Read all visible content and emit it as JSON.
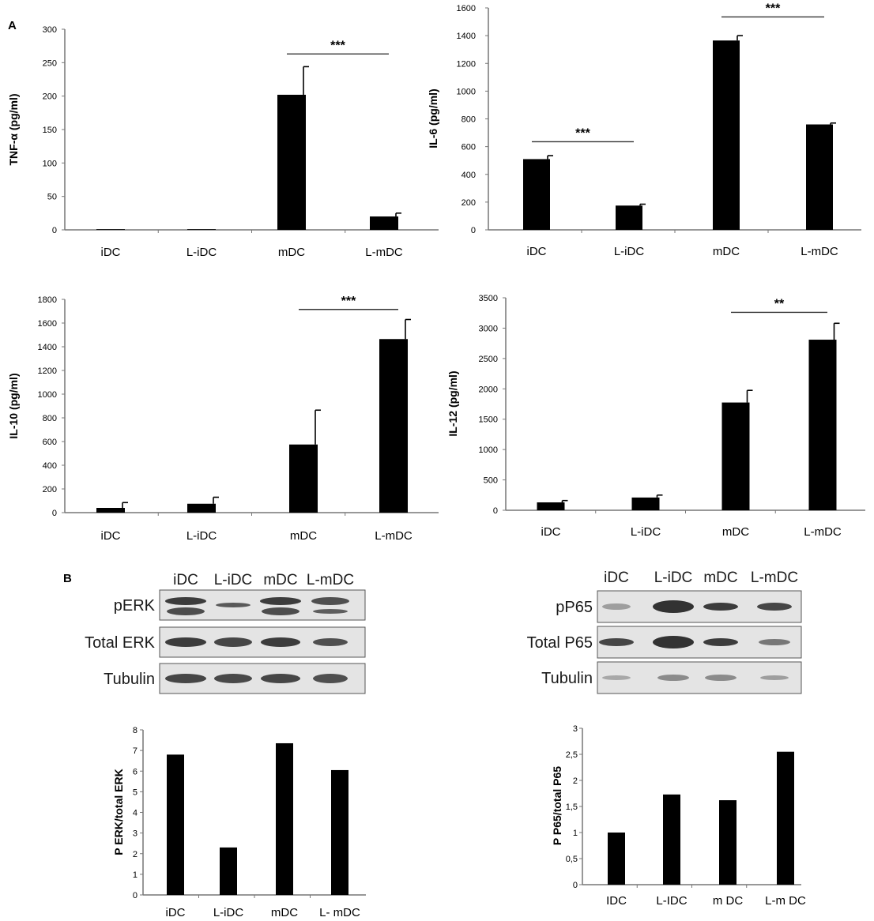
{
  "panels": {
    "a": "A",
    "b": "B"
  },
  "chart_data": [
    {
      "type": "bar",
      "categories": [
        "iDC",
        "L-iDC",
        "mDC",
        "L-mDC"
      ],
      "values": [
        1,
        1,
        202,
        20
      ],
      "errors": [
        0,
        0,
        42,
        5
      ],
      "ylabel": "TNF-α (pg/ml)",
      "ylim": [
        0,
        300
      ],
      "yticks": [
        "0",
        "50",
        "100",
        "150",
        "200",
        "250",
        "300"
      ],
      "significance": [
        {
          "from": 2,
          "to": 3,
          "label": "***",
          "y": 263
        }
      ],
      "grid": false
    },
    {
      "type": "bar",
      "categories": [
        "iDC",
        "L-iDC",
        "mDC",
        "L-mDC"
      ],
      "values": [
        510,
        175,
        1365,
        760
      ],
      "errors": [
        25,
        10,
        35,
        10
      ],
      "ylabel": "IL-6 (pg/ml)",
      "ylim": [
        0,
        1600
      ],
      "yticks": [
        "0",
        "200",
        "400",
        "600",
        "800",
        "1000",
        "1200",
        "1400",
        "1600"
      ],
      "significance": [
        {
          "from": 0,
          "to": 1,
          "label": "***",
          "y": 635
        },
        {
          "from": 2,
          "to": 3,
          "label": "***",
          "y": 1535
        }
      ],
      "grid": false
    },
    {
      "type": "bar",
      "categories": [
        "iDC",
        "L-iDC",
        "mDC",
        "L-mDC"
      ],
      "values": [
        40,
        75,
        575,
        1465
      ],
      "errors": [
        45,
        55,
        290,
        165
      ],
      "ylabel": "IL-10 (pg/ml)",
      "ylim": [
        0,
        1800
      ],
      "yticks": [
        "0",
        "200",
        "400",
        "600",
        "800",
        "1000",
        "1200",
        "1400",
        "1600",
        "1800"
      ],
      "significance": [
        {
          "from": 2,
          "to": 3,
          "label": "***",
          "y": 1715
        }
      ],
      "grid": false
    },
    {
      "type": "bar",
      "categories": [
        "iDC",
        "L-iDC",
        "mDC",
        "L-mDC"
      ],
      "values": [
        130,
        210,
        1775,
        2810
      ],
      "errors": [
        30,
        40,
        200,
        270
      ],
      "ylabel": "IL-12 (pg/ml)",
      "ylim": [
        0,
        3500
      ],
      "yticks": [
        "0",
        "500",
        "1000",
        "1500",
        "2000",
        "2500",
        "3000",
        "3500"
      ],
      "significance": [
        {
          "from": 2,
          "to": 3,
          "label": "**",
          "y": 3260
        }
      ],
      "grid": false
    },
    {
      "type": "bar",
      "categories": [
        "iDC",
        "L-iDC",
        "mDC",
        "L- mDC"
      ],
      "values": [
        6.8,
        2.3,
        7.35,
        6.05
      ],
      "ylabel": "P ERK/total ERK",
      "ylim": [
        0,
        8
      ],
      "yticks": [
        "0",
        "1",
        "2",
        "3",
        "4",
        "5",
        "6",
        "7",
        "8"
      ],
      "grid": false
    },
    {
      "type": "bar",
      "categories": [
        "IDC",
        "L-IDC",
        "m DC",
        "L-m DC"
      ],
      "values": [
        1.0,
        1.73,
        1.62,
        2.55
      ],
      "ylabel": "P P65/total P65",
      "ylim": [
        0,
        3
      ],
      "yticks": [
        "0",
        "0,5",
        "1",
        "1,5",
        "2",
        "2,5",
        "3"
      ],
      "grid": false
    }
  ],
  "blots": {
    "erk": {
      "lanes": [
        "iDC",
        "L-iDC",
        "mDC",
        "L-mDC"
      ],
      "rows": [
        "pERK",
        "Total ERK",
        "Tubulin"
      ]
    },
    "p65": {
      "lanes": [
        "iDC",
        "L-iDC",
        "mDC",
        "L-mDC"
      ],
      "rows": [
        "pP65",
        "Total P65",
        "Tubulin"
      ]
    }
  }
}
